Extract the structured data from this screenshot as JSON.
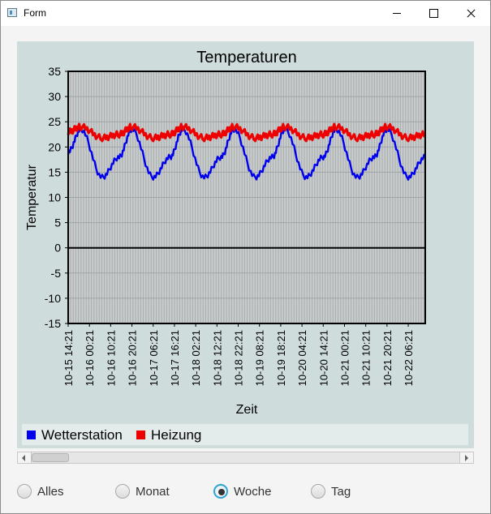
{
  "window": {
    "title": "Form",
    "icon": "form-app-icon"
  },
  "chart_data": {
    "type": "line",
    "title": "Temperaturen",
    "xlabel": "Zeit",
    "ylabel": "Temperatur",
    "ylim": [
      -15,
      35
    ],
    "yticks": [
      35,
      30,
      25,
      20,
      15,
      10,
      5,
      0,
      -5,
      -10,
      -15
    ],
    "xlim": [
      "10-15 14:21",
      "10-22 14:21"
    ],
    "x_tick_labels": [
      "10-15 14:21",
      "10-16 00:21",
      "10-16 10:21",
      "10-16 20:21",
      "10-17 06:21",
      "10-17 16:21",
      "10-18 02:21",
      "10-18 12:21",
      "10-18 22:21",
      "10-19 08:21",
      "10-19 18:21",
      "10-20 04:21",
      "10-20 14:21",
      "10-21 00:21",
      "10-21 10:21",
      "10-21 20:21",
      "10-22 06:21"
    ],
    "grid": true,
    "legend_position": "bottom",
    "series": [
      {
        "name": "Wetterstation",
        "color": "#0000ee",
        "x": [
          "10-15 14:21",
          "10-15 20:21",
          "10-16 06:21",
          "10-16 14:21",
          "10-16 20:21",
          "10-17 06:21",
          "10-17 14:21",
          "10-17 20:21",
          "10-18 06:21",
          "10-18 14:21",
          "10-18 20:21",
          "10-19 06:21",
          "10-19 14:21",
          "10-19 20:21",
          "10-20 06:21",
          "10-20 14:21",
          "10-20 20:21",
          "10-21 06:21",
          "10-21 14:21",
          "10-21 20:21",
          "10-22 06:21",
          "10-22 14:21"
        ],
        "values": [
          19,
          23.5,
          14,
          18,
          23.5,
          14,
          18,
          23.5,
          14,
          18,
          23.5,
          14,
          18,
          23.5,
          14,
          18,
          23.5,
          14,
          18,
          23.5,
          14,
          18
        ]
      },
      {
        "name": "Heizung",
        "color": "#ee0000",
        "x": [
          "10-15 14:21",
          "10-15 20:21",
          "10-16 06:21",
          "10-16 14:21",
          "10-16 20:21",
          "10-17 06:21",
          "10-17 14:21",
          "10-17 20:21",
          "10-18 06:21",
          "10-18 14:21",
          "10-18 20:21",
          "10-19 06:21",
          "10-19 14:21",
          "10-19 20:21",
          "10-20 06:21",
          "10-20 14:21",
          "10-20 20:21",
          "10-21 06:21",
          "10-21 14:21",
          "10-21 20:21",
          "10-22 06:21",
          "10-22 14:21"
        ],
        "values": [
          23,
          24,
          21.8,
          22.5,
          24,
          21.8,
          22.5,
          24,
          21.8,
          22.5,
          24,
          21.8,
          22.5,
          24,
          21.8,
          22.5,
          24,
          21.8,
          22.5,
          24,
          21.8,
          22.5
        ]
      }
    ]
  },
  "legend": [
    {
      "label": "Wetterstation",
      "color": "#0000ee"
    },
    {
      "label": "Heizung",
      "color": "#ee0000"
    }
  ],
  "radios": [
    {
      "label": "Alles",
      "checked": false
    },
    {
      "label": "Monat",
      "checked": false
    },
    {
      "label": "Woche",
      "checked": true
    },
    {
      "label": "Tag",
      "checked": false
    }
  ]
}
